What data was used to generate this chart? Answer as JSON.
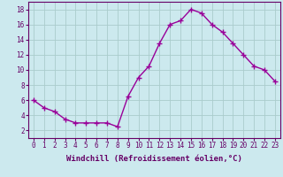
{
  "x": [
    0,
    1,
    2,
    3,
    4,
    5,
    6,
    7,
    8,
    9,
    10,
    11,
    12,
    13,
    14,
    15,
    16,
    17,
    18,
    19,
    20,
    21,
    22,
    23
  ],
  "y": [
    6,
    5,
    4.5,
    3.5,
    3,
    3,
    3,
    3,
    2.5,
    6.5,
    9,
    10.5,
    13.5,
    16,
    16.5,
    18,
    17.5,
    16,
    15,
    13.5,
    12,
    10.5,
    10,
    8.5
  ],
  "line_color": "#990099",
  "marker": "+",
  "marker_size": 4,
  "line_width": 1.0,
  "xlabel": "Windchill (Refroidissement éolien,°C)",
  "xlabel_fontsize": 6.5,
  "ylabel_ticks": [
    2,
    4,
    6,
    8,
    10,
    12,
    14,
    16,
    18
  ],
  "xtick_labels": [
    "0",
    "1",
    "2",
    "3",
    "4",
    "5",
    "6",
    "7",
    "8",
    "9",
    "10",
    "11",
    "12",
    "13",
    "14",
    "15",
    "16",
    "17",
    "18",
    "19",
    "20",
    "21",
    "22",
    "23"
  ],
  "ylim": [
    1,
    19
  ],
  "xlim": [
    -0.5,
    23.5
  ],
  "background_color": "#cce9ee",
  "grid_color": "#aacccc",
  "tick_fontsize": 5.5,
  "label_color": "#660066",
  "spine_color": "#660066"
}
